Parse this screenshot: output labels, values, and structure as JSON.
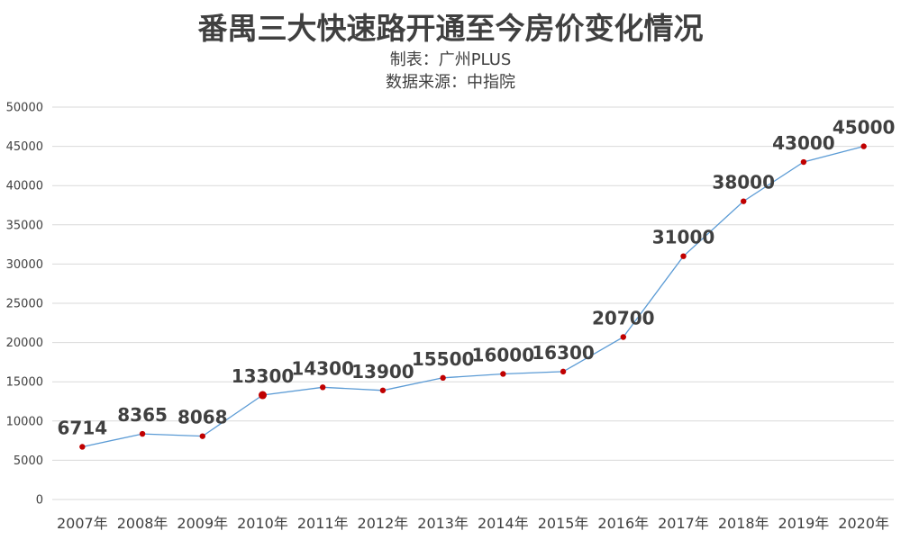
{
  "chart_data": {
    "type": "line",
    "title": "番禺三大快速路开通至今房价变化情况",
    "subtitle_lines": [
      "制表：广州PLUS",
      "数据来源：中指院"
    ],
    "xlabel": "",
    "ylabel": "",
    "categories": [
      "2007年",
      "2008年",
      "2009年",
      "2010年",
      "2011年",
      "2012年",
      "2013年",
      "2014年",
      "2015年",
      "2016年",
      "2017年",
      "2018年",
      "2019年",
      "2020年"
    ],
    "series": [
      {
        "values": [
          6714,
          8365,
          8068,
          13300,
          14300,
          13900,
          15500,
          16000,
          16300,
          20700,
          31000,
          38000,
          43000,
          45000
        ]
      }
    ],
    "ylim": [
      0,
      50000
    ],
    "yticks": [
      0,
      5000,
      10000,
      15000,
      20000,
      25000,
      30000,
      35000,
      40000,
      45000,
      50000
    ],
    "grid": true,
    "legend": "none",
    "data_labels": true,
    "colors": {
      "line": "#5b9bd5",
      "marker": "#c00000",
      "grid": "#d9d9d9",
      "text": "#404040"
    }
  }
}
